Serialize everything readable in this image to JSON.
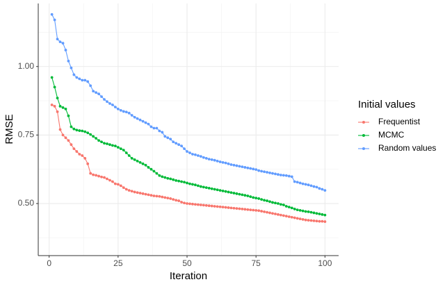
{
  "chart_data": {
    "type": "line",
    "xlabel": "Iteration",
    "ylabel": "RMSE",
    "legend_title": "Initial values",
    "legend": "right",
    "x": [
      1,
      2,
      3,
      4,
      5,
      6,
      7,
      8,
      9,
      10,
      11,
      12,
      13,
      14,
      15,
      16,
      17,
      18,
      19,
      20,
      21,
      22,
      23,
      24,
      25,
      26,
      27,
      28,
      29,
      30,
      31,
      32,
      33,
      34,
      35,
      36,
      37,
      38,
      39,
      40,
      41,
      42,
      43,
      44,
      45,
      46,
      47,
      48,
      49,
      50,
      51,
      52,
      53,
      54,
      55,
      56,
      57,
      58,
      59,
      60,
      61,
      62,
      63,
      64,
      65,
      66,
      67,
      68,
      69,
      70,
      71,
      72,
      73,
      74,
      75,
      76,
      77,
      78,
      79,
      80,
      81,
      82,
      83,
      84,
      85,
      86,
      87,
      88,
      89,
      90,
      91,
      92,
      93,
      94,
      95,
      96,
      97,
      98,
      99,
      100
    ],
    "series": [
      {
        "name": "Frequentist",
        "color": "#F8766D",
        "values": [
          0.86,
          0.855,
          0.835,
          0.77,
          0.75,
          0.74,
          0.73,
          0.715,
          0.7,
          0.69,
          0.68,
          0.675,
          0.665,
          0.645,
          0.61,
          0.605,
          0.603,
          0.6,
          0.597,
          0.595,
          0.59,
          0.585,
          0.58,
          0.572,
          0.57,
          0.565,
          0.558,
          0.552,
          0.548,
          0.545,
          0.542,
          0.54,
          0.538,
          0.536,
          0.534,
          0.532,
          0.53,
          0.528,
          0.527,
          0.526,
          0.524,
          0.522,
          0.52,
          0.518,
          0.515,
          0.512,
          0.51,
          0.505,
          0.502,
          0.5,
          0.499,
          0.498,
          0.497,
          0.496,
          0.495,
          0.494,
          0.493,
          0.492,
          0.491,
          0.49,
          0.489,
          0.488,
          0.487,
          0.486,
          0.485,
          0.484,
          0.483,
          0.482,
          0.481,
          0.48,
          0.479,
          0.478,
          0.477,
          0.476,
          0.475,
          0.474,
          0.472,
          0.47,
          0.468,
          0.466,
          0.464,
          0.462,
          0.46,
          0.458,
          0.456,
          0.454,
          0.452,
          0.45,
          0.448,
          0.446,
          0.444,
          0.442,
          0.44,
          0.439,
          0.438,
          0.437,
          0.436,
          0.435,
          0.435,
          0.434
        ]
      },
      {
        "name": "MCMC",
        "color": "#00BA38",
        "values": [
          0.96,
          0.925,
          0.885,
          0.855,
          0.85,
          0.845,
          0.82,
          0.78,
          0.772,
          0.768,
          0.766,
          0.765,
          0.762,
          0.758,
          0.752,
          0.745,
          0.738,
          0.73,
          0.725,
          0.72,
          0.718,
          0.715,
          0.712,
          0.71,
          0.705,
          0.7,
          0.695,
          0.685,
          0.675,
          0.665,
          0.66,
          0.655,
          0.65,
          0.645,
          0.64,
          0.632,
          0.625,
          0.618,
          0.61,
          0.602,
          0.598,
          0.595,
          0.592,
          0.59,
          0.587,
          0.584,
          0.582,
          0.58,
          0.578,
          0.575,
          0.572,
          0.57,
          0.568,
          0.565,
          0.562,
          0.56,
          0.558,
          0.556,
          0.554,
          0.552,
          0.55,
          0.548,
          0.546,
          0.544,
          0.542,
          0.54,
          0.538,
          0.536,
          0.534,
          0.532,
          0.53,
          0.528,
          0.525,
          0.522,
          0.52,
          0.518,
          0.515,
          0.512,
          0.51,
          0.507,
          0.504,
          0.502,
          0.5,
          0.497,
          0.495,
          0.49,
          0.487,
          0.484,
          0.48,
          0.477,
          0.475,
          0.473,
          0.471,
          0.47,
          0.468,
          0.466,
          0.464,
          0.462,
          0.46,
          0.458
        ]
      },
      {
        "name": "Random values",
        "color": "#619CFF",
        "values": [
          1.19,
          1.17,
          1.1,
          1.09,
          1.085,
          1.06,
          1.02,
          0.995,
          0.97,
          0.96,
          0.955,
          0.95,
          0.95,
          0.945,
          0.93,
          0.91,
          0.905,
          0.9,
          0.89,
          0.88,
          0.872,
          0.865,
          0.86,
          0.852,
          0.845,
          0.84,
          0.836,
          0.834,
          0.83,
          0.822,
          0.815,
          0.81,
          0.805,
          0.8,
          0.795,
          0.79,
          0.78,
          0.775,
          0.775,
          0.765,
          0.76,
          0.745,
          0.74,
          0.735,
          0.725,
          0.72,
          0.715,
          0.71,
          0.7,
          0.69,
          0.685,
          0.68,
          0.678,
          0.675,
          0.672,
          0.668,
          0.665,
          0.662,
          0.66,
          0.658,
          0.655,
          0.652,
          0.65,
          0.648,
          0.645,
          0.642,
          0.64,
          0.638,
          0.636,
          0.634,
          0.632,
          0.63,
          0.628,
          0.626,
          0.624,
          0.62,
          0.618,
          0.616,
          0.614,
          0.612,
          0.61,
          0.608,
          0.606,
          0.604,
          0.603,
          0.602,
          0.6,
          0.598,
          0.58,
          0.578,
          0.575,
          0.572,
          0.57,
          0.568,
          0.565,
          0.562,
          0.56,
          0.555,
          0.552,
          0.548
        ]
      }
    ],
    "xlim": [
      -3.95,
      104.95
    ],
    "xticks": [
      0,
      25,
      50,
      75,
      100
    ],
    "ylim": [
      0.31,
      1.23
    ],
    "yticks": [
      {
        "value": 0.5,
        "label": "0.50"
      },
      {
        "value": 0.75,
        "label": "0.75"
      },
      {
        "value": 1,
        "label": "1.00"
      }
    ],
    "grid": true
  }
}
